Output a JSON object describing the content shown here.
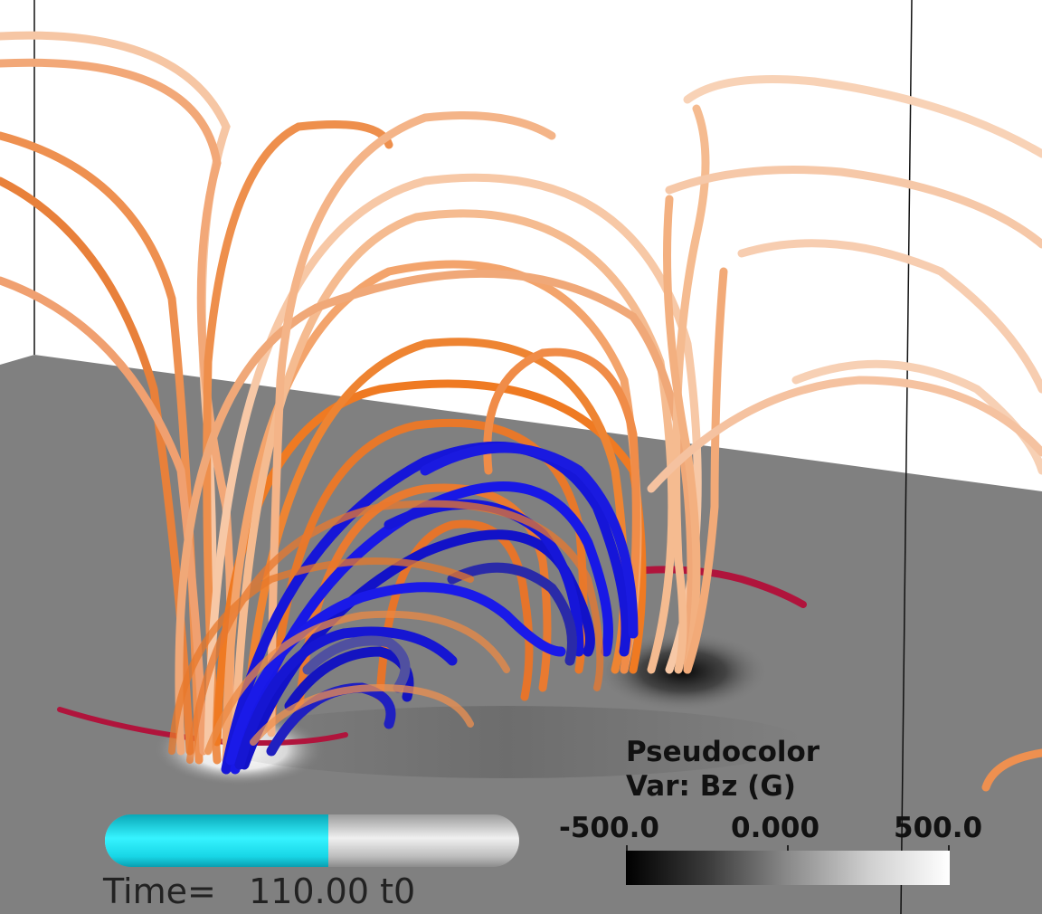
{
  "legend": {
    "title": "Pseudocolor",
    "variable": "Var: Bz (G)",
    "tick_min": "-500.0",
    "tick_mid": "0.000",
    "tick_max": "500.0"
  },
  "time": {
    "label": "Time=   110.00 t0",
    "progress_fraction": 0.54
  },
  "colors": {
    "outer_field_lines": "#ef7a22",
    "flux_rope": "#1414e0",
    "polarity_inversion_line": "#b0143c",
    "progress_fill": "#22e4f2"
  }
}
